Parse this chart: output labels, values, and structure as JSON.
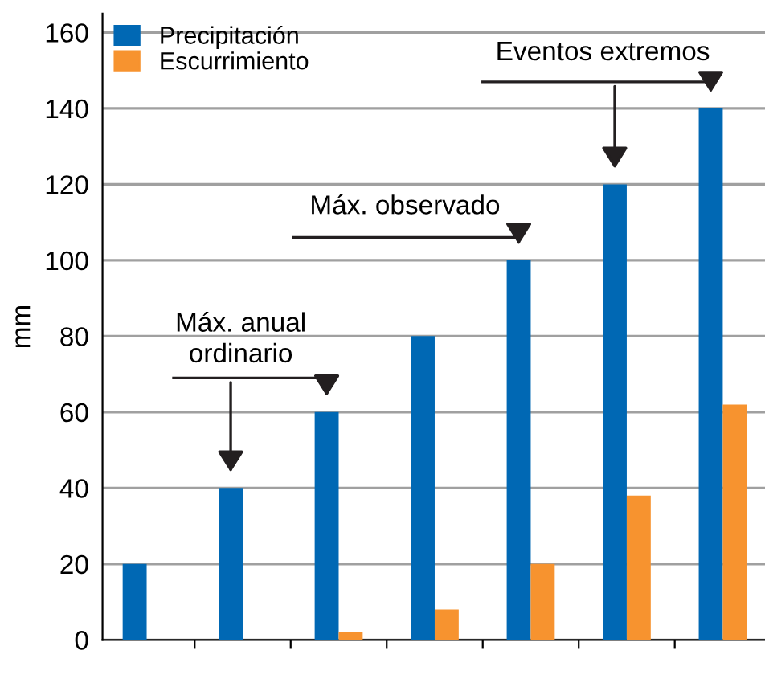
{
  "chart_data": {
    "type": "bar",
    "ylabel": "mm",
    "categories": [
      null,
      null,
      null,
      null,
      null,
      null,
      null
    ],
    "series": [
      {
        "name": "Precipitación",
        "color": "#0068b4",
        "values": [
          20,
          40,
          60,
          80,
          100,
          120,
          140
        ]
      },
      {
        "name": "Escurrimiento",
        "color": "#f7932f",
        "values": [
          0,
          0,
          2,
          8,
          20,
          38,
          62
        ]
      }
    ],
    "ylim": [
      0,
      165
    ],
    "yticks": [
      0,
      20,
      40,
      60,
      80,
      100,
      120,
      140,
      160
    ],
    "grid": "y",
    "legend": "top left",
    "annotations": [
      "Máx. anual\nordinario",
      "Máx. observado",
      "Eventos extremos"
    ]
  }
}
